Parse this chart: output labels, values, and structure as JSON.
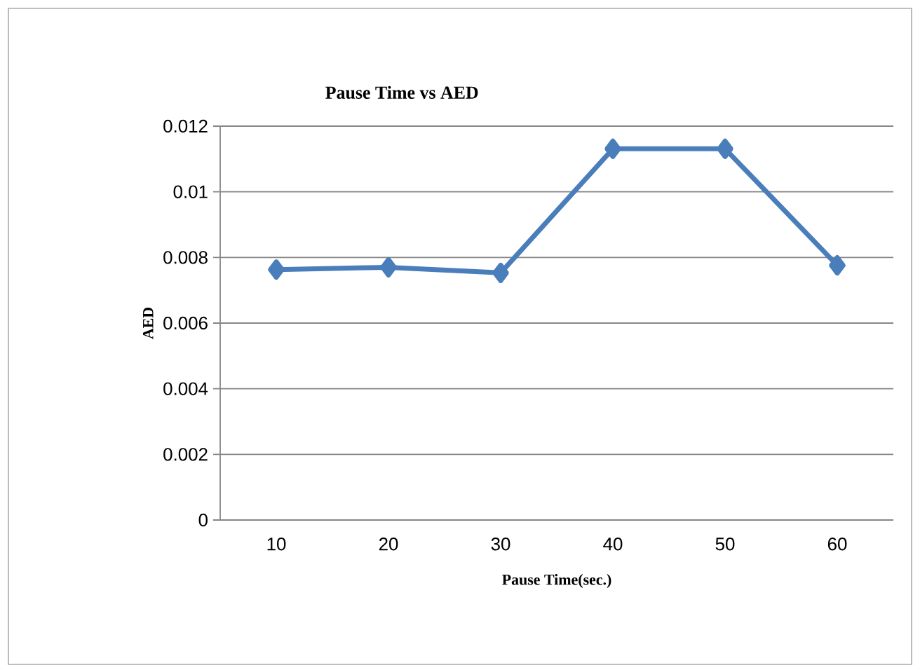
{
  "chart_data": {
    "type": "line",
    "title": "Pause Time vs AED",
    "xlabel": "Pause Time(sec.)",
    "ylabel": "AED",
    "categories": [
      "10",
      "20",
      "30",
      "40",
      "50",
      "60"
    ],
    "series": [
      {
        "color": "#4a7ebb",
        "values": [
          0.00763,
          0.0077,
          0.00753,
          0.01131,
          0.01131,
          0.00776
        ]
      }
    ],
    "ylim": [
      0,
      0.012
    ],
    "yticks": [
      0,
      0.002,
      0.004,
      0.006,
      0.008,
      0.01,
      0.012
    ],
    "grid": "y",
    "marker": "diamond",
    "line_style": "solid"
  }
}
